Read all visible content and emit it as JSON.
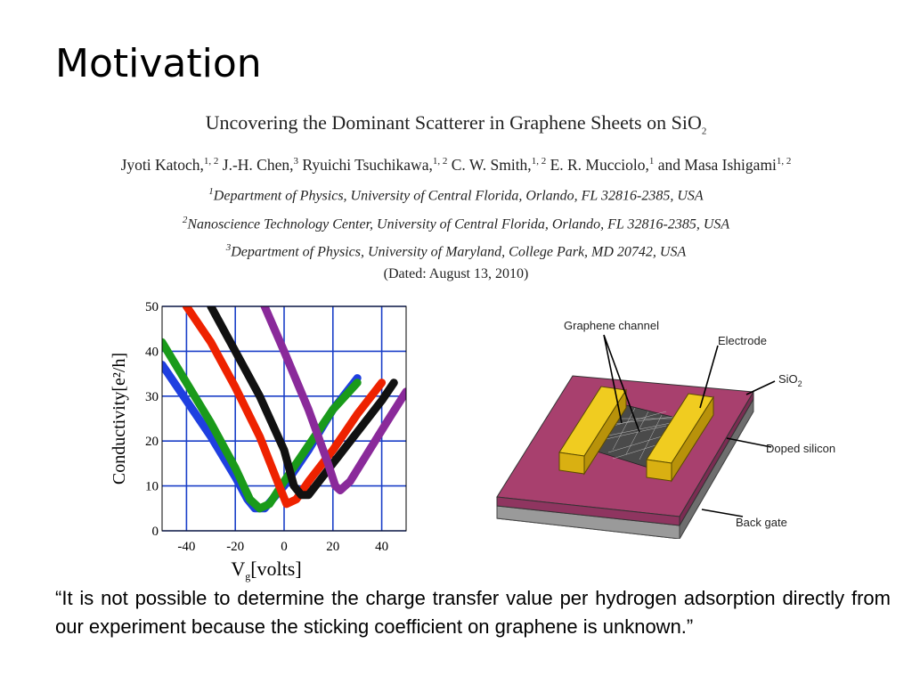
{
  "slide": {
    "title": "Motivation"
  },
  "paper": {
    "title": "Uncovering the Dominant Scatterer in Graphene Sheets on SiO",
    "title_sub": "2",
    "authors": [
      {
        "name": "Jyoti Katoch,",
        "sup": "1, 2"
      },
      {
        "name": "J.-H. Chen,",
        "sup": "3"
      },
      {
        "name": "Ryuichi Tsuchikawa,",
        "sup": "1, 2"
      },
      {
        "name": "C. W. Smith,",
        "sup": "1, 2"
      },
      {
        "name": "E. R. Mucciolo,",
        "sup": "1"
      },
      {
        "name": "and Masa Ishigami",
        "sup": "1, 2"
      }
    ],
    "affiliations": [
      {
        "sup": "1",
        "text": "Department of Physics, University of Central Florida, Orlando, FL 32816-2385, USA"
      },
      {
        "sup": "2",
        "text": "Nanoscience Technology Center, University of Central Florida, Orlando, FL 32816-2385, USA"
      },
      {
        "sup": "3",
        "text": "Department of Physics, University of Maryland, College Park, MD 20742, USA"
      }
    ],
    "dated": "(Dated: August 13, 2010)"
  },
  "chart_data": {
    "type": "line",
    "xlabel": "V",
    "xlabel_sub": "g",
    "xlabel_rest": "[volts]",
    "ylabel": "Conductivity[e²/h]",
    "xlim": [
      -50,
      50
    ],
    "ylim": [
      0,
      50
    ],
    "xticks": [
      -40,
      -20,
      0,
      20,
      40
    ],
    "yticks": [
      0,
      10,
      20,
      30,
      40,
      50
    ],
    "grid": true,
    "series": [
      {
        "color": "#1f3fe0",
        "x": [
          -50,
          -40,
          -30,
          -20,
          -15,
          -12,
          -8,
          0,
          10,
          20,
          30
        ],
        "y": [
          37,
          29,
          21,
          12,
          7,
          5,
          5,
          10,
          18,
          27,
          34
        ]
      },
      {
        "color": "#1a9a1a",
        "x": [
          -50,
          -40,
          -30,
          -20,
          -14,
          -10,
          -6,
          0,
          10,
          20,
          30
        ],
        "y": [
          42,
          33,
          24,
          14,
          7,
          5,
          6,
          11,
          19,
          27,
          33
        ]
      },
      {
        "color": "#ee2200",
        "x": [
          -40,
          -30,
          -20,
          -10,
          -2,
          1,
          5,
          10,
          20,
          30,
          40
        ],
        "y": [
          50,
          42,
          32,
          21,
          10,
          6,
          7,
          11,
          18,
          26,
          33
        ]
      },
      {
        "color": "#111111",
        "x": [
          -30,
          -20,
          -10,
          0,
          4,
          7,
          10,
          20,
          30,
          40,
          45
        ],
        "y": [
          50,
          40,
          30,
          18,
          10,
          8,
          8,
          15,
          22,
          29,
          33
        ]
      },
      {
        "color": "#8a2a9a",
        "x": [
          -8,
          0,
          10,
          18,
          21,
          23,
          27,
          35,
          43,
          50
        ],
        "y": [
          50,
          40,
          27,
          15,
          10,
          9,
          11,
          18,
          25,
          31
        ]
      }
    ]
  },
  "diagram": {
    "labels": {
      "graphene_channel": "Graphene channel",
      "electrode": "Electrode",
      "sio2": "SiO",
      "sio2_sub": "2",
      "doped_silicon": "Doped silicon",
      "back_gate": "Back gate"
    },
    "colors": {
      "substrate_top": "#a8406e",
      "electrode": "#e8c018",
      "silicon": "#8a8a8a",
      "graphene": "#555555"
    }
  },
  "quote": "“It is not possible to determine the charge transfer value per hydrogen adsorption directly from our experiment because the sticking coefficient on graphene is unknown.”"
}
